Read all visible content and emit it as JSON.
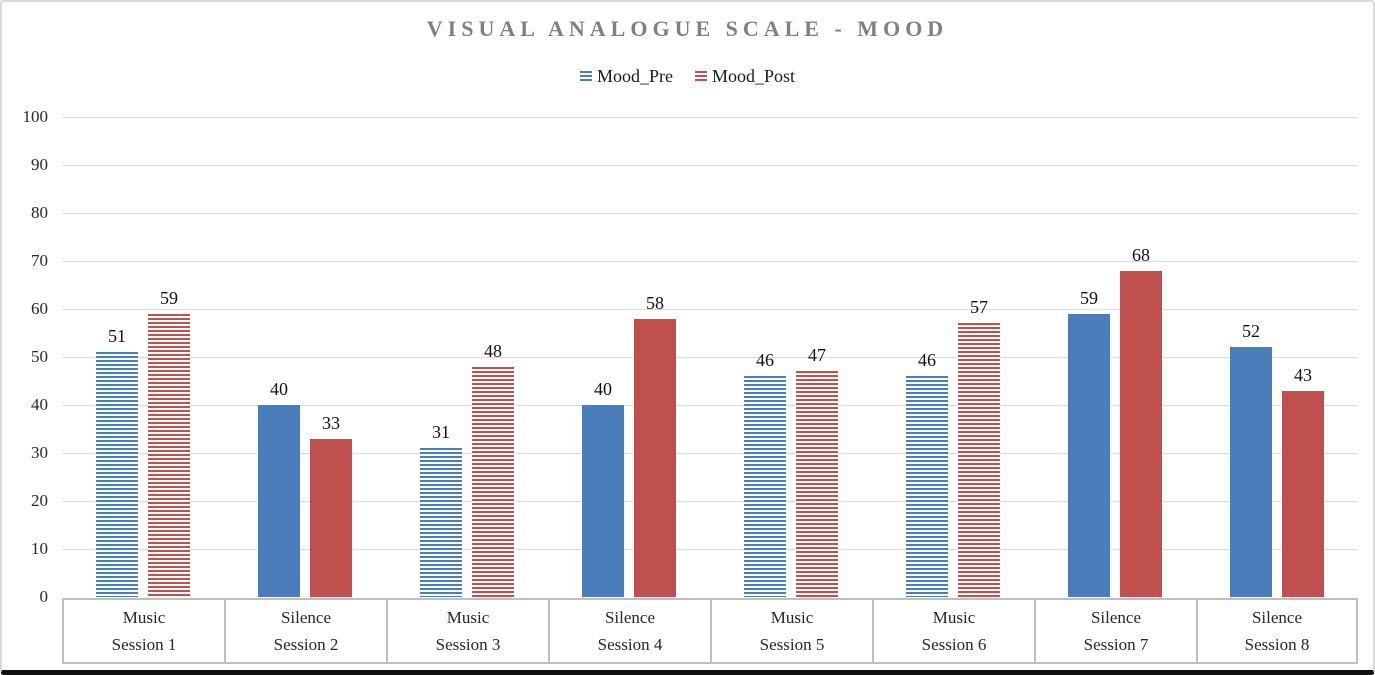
{
  "title": "VISUAL ANALOGUE SCALE - MOOD",
  "legend": {
    "items": [
      {
        "label": "Mood_Pre",
        "color": "#4a7ebb",
        "pattern": "striped"
      },
      {
        "label": "Mood_Post",
        "color": "#c0504d",
        "pattern": "striped"
      }
    ]
  },
  "colors": {
    "pre_blue": "#4a7ebb",
    "post_red": "#c0504d",
    "gridline": "#d9d9d9",
    "axis_line": "#bfbfbf",
    "title_text": "#7f7f7f",
    "label_text": "#262626",
    "frame_border": "#d9d9d9",
    "bottom_edge": "#111111"
  },
  "chart_data": {
    "type": "bar",
    "title": "VISUAL ANALOGUE SCALE - MOOD",
    "categories": [
      {
        "group": "Music",
        "session": "Session 1",
        "pattern": "striped"
      },
      {
        "group": "Silence",
        "session": "Session 2",
        "pattern": "solid"
      },
      {
        "group": "Music",
        "session": "Session 3",
        "pattern": "striped"
      },
      {
        "group": "Silence",
        "session": "Session 4",
        "pattern": "solid"
      },
      {
        "group": "Music",
        "session": "Session 5",
        "pattern": "striped"
      },
      {
        "group": "Music",
        "session": "Session 6",
        "pattern": "striped"
      },
      {
        "group": "Silence",
        "session": "Session 7",
        "pattern": "solid"
      },
      {
        "group": "Silence",
        "session": "Session 8",
        "pattern": "solid"
      }
    ],
    "series": [
      {
        "name": "Mood_Pre",
        "color": "#4a7ebb",
        "values": [
          51,
          40,
          31,
          40,
          46,
          46,
          59,
          52
        ]
      },
      {
        "name": "Mood_Post",
        "color": "#c0504d",
        "values": [
          59,
          33,
          48,
          58,
          47,
          57,
          68,
          43
        ]
      }
    ],
    "xlabel": "",
    "ylabel": "",
    "ylim": [
      0,
      100
    ],
    "ytick_step": 10,
    "grid": true,
    "legend_position": "top-center",
    "data_labels": true
  }
}
